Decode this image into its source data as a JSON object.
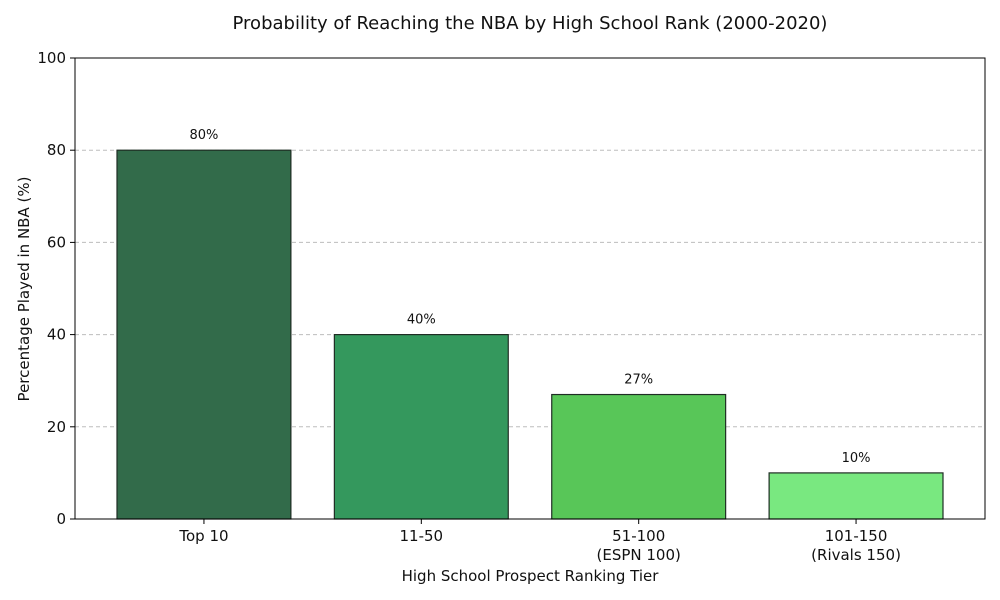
{
  "chart_data": {
    "type": "bar",
    "title": "Probability of Reaching the NBA by High School Rank (2000-2020)",
    "xlabel": "High School Prospect Ranking Tier",
    "ylabel": "Percentage Played in NBA (%)",
    "ylim": [
      0,
      100
    ],
    "yticks": [
      0,
      20,
      40,
      60,
      80,
      100
    ],
    "grid": true,
    "categories": [
      [
        "Top 10"
      ],
      [
        "11-50"
      ],
      [
        "51-100",
        "(ESPN 100)"
      ],
      [
        "101-150",
        "(Rivals 150)"
      ]
    ],
    "values": [
      80,
      40,
      27,
      10
    ],
    "value_labels": [
      "80%",
      "40%",
      "27%",
      "10%"
    ],
    "colors": [
      "#326b4a",
      "#34985d",
      "#58c658",
      "#79e880"
    ]
  }
}
